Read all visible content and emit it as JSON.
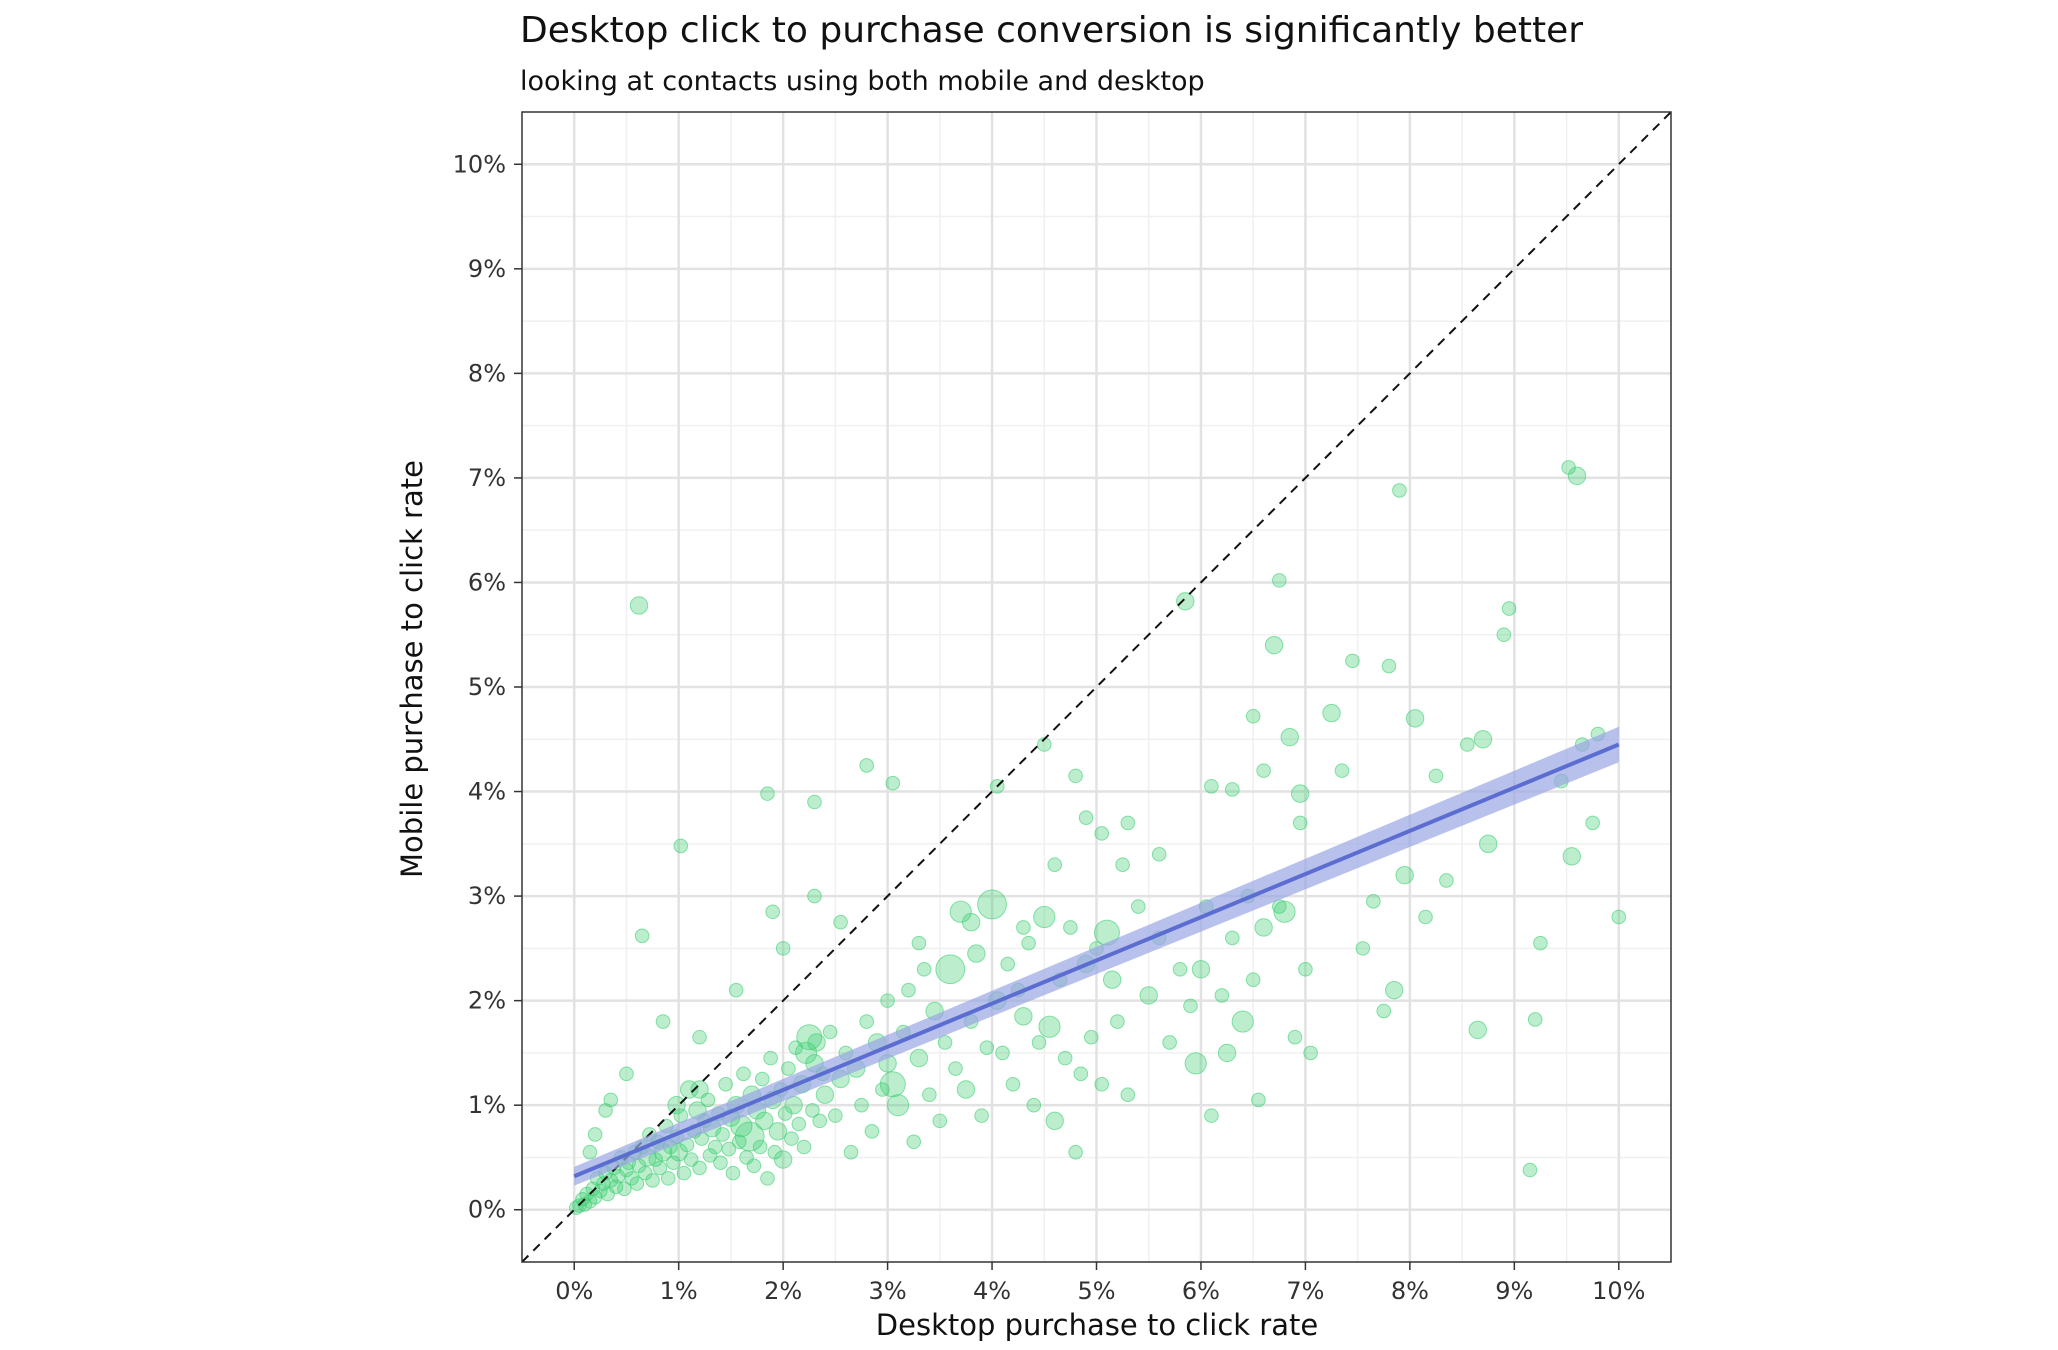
{
  "chart_data": {
    "type": "scatter",
    "title": "Desktop click to purchase conversion is significantly better",
    "subtitle": "looking at contacts using both mobile and desktop",
    "xlabel": "Desktop purchase to click rate",
    "ylabel": "Mobile purchase to click rate",
    "xlim": [
      -0.5,
      10.5
    ],
    "ylim": [
      -0.5,
      10.5
    ],
    "x_ticks": [
      0,
      1,
      2,
      3,
      4,
      5,
      6,
      7,
      8,
      9,
      10
    ],
    "y_ticks": [
      0,
      1,
      2,
      3,
      4,
      5,
      6,
      7,
      8,
      9,
      10
    ],
    "x_tick_labels": [
      "0%",
      "1%",
      "2%",
      "3%",
      "4%",
      "5%",
      "6%",
      "7%",
      "8%",
      "9%",
      "10%"
    ],
    "y_tick_labels": [
      "0%",
      "1%",
      "2%",
      "3%",
      "4%",
      "5%",
      "6%",
      "7%",
      "8%",
      "9%",
      "10%"
    ],
    "grid": true,
    "reference_line": {
      "type": "y=x",
      "style": "dashed",
      "color": "#111111"
    },
    "fit_line": {
      "type": "linear",
      "x": [
        0,
        10
      ],
      "y": [
        0.32,
        4.45
      ],
      "ci_halfwidth": [
        0.09,
        0.17
      ],
      "color": "#5b6dd1",
      "ribbon_color": "#9aa5e4"
    },
    "point_color": "#3ecf72",
    "points": [
      {
        "x": 0.02,
        "y": 0.02,
        "s": 2
      },
      {
        "x": 0.05,
        "y": 0.04,
        "s": 2
      },
      {
        "x": 0.08,
        "y": 0.1,
        "s": 2
      },
      {
        "x": 0.1,
        "y": 0.05,
        "s": 2
      },
      {
        "x": 0.12,
        "y": 0.15,
        "s": 2
      },
      {
        "x": 0.15,
        "y": 0.08,
        "s": 2
      },
      {
        "x": 0.18,
        "y": 0.2,
        "s": 2
      },
      {
        "x": 0.2,
        "y": 0.12,
        "s": 2
      },
      {
        "x": 0.22,
        "y": 0.3,
        "s": 2
      },
      {
        "x": 0.25,
        "y": 0.18,
        "s": 2
      },
      {
        "x": 0.28,
        "y": 0.25,
        "s": 2
      },
      {
        "x": 0.3,
        "y": 0.35,
        "s": 2
      },
      {
        "x": 0.32,
        "y": 0.15,
        "s": 2
      },
      {
        "x": 0.35,
        "y": 0.28,
        "s": 2
      },
      {
        "x": 0.38,
        "y": 0.4,
        "s": 2
      },
      {
        "x": 0.4,
        "y": 0.22,
        "s": 2
      },
      {
        "x": 0.42,
        "y": 0.32,
        "s": 2
      },
      {
        "x": 0.45,
        "y": 0.5,
        "s": 2
      },
      {
        "x": 0.48,
        "y": 0.2,
        "s": 2
      },
      {
        "x": 0.5,
        "y": 0.38,
        "s": 2
      },
      {
        "x": 0.52,
        "y": 0.45,
        "s": 2
      },
      {
        "x": 0.55,
        "y": 0.3,
        "s": 2
      },
      {
        "x": 0.58,
        "y": 0.55,
        "s": 2
      },
      {
        "x": 0.6,
        "y": 0.25,
        "s": 2
      },
      {
        "x": 0.62,
        "y": 0.42,
        "s": 2
      },
      {
        "x": 0.65,
        "y": 0.6,
        "s": 2
      },
      {
        "x": 0.68,
        "y": 0.35,
        "s": 2
      },
      {
        "x": 0.7,
        "y": 0.5,
        "s": 3
      },
      {
        "x": 0.72,
        "y": 0.72,
        "s": 2
      },
      {
        "x": 0.75,
        "y": 0.28,
        "s": 2
      },
      {
        "x": 0.78,
        "y": 0.48,
        "s": 2
      },
      {
        "x": 0.8,
        "y": 0.65,
        "s": 2
      },
      {
        "x": 0.82,
        "y": 0.4,
        "s": 2
      },
      {
        "x": 0.85,
        "y": 0.55,
        "s": 3
      },
      {
        "x": 0.88,
        "y": 0.8,
        "s": 2
      },
      {
        "x": 0.9,
        "y": 0.3,
        "s": 2
      },
      {
        "x": 0.92,
        "y": 0.6,
        "s": 2
      },
      {
        "x": 0.95,
        "y": 0.45,
        "s": 2
      },
      {
        "x": 0.98,
        "y": 0.7,
        "s": 2
      },
      {
        "x": 1.0,
        "y": 0.55,
        "s": 3
      },
      {
        "x": 1.02,
        "y": 0.9,
        "s": 2
      },
      {
        "x": 1.05,
        "y": 0.35,
        "s": 2
      },
      {
        "x": 1.08,
        "y": 0.62,
        "s": 2
      },
      {
        "x": 1.1,
        "y": 1.15,
        "s": 3
      },
      {
        "x": 1.12,
        "y": 0.48,
        "s": 2
      },
      {
        "x": 1.15,
        "y": 0.75,
        "s": 2
      },
      {
        "x": 1.18,
        "y": 0.95,
        "s": 3
      },
      {
        "x": 1.2,
        "y": 0.4,
        "s": 2
      },
      {
        "x": 1.22,
        "y": 0.68,
        "s": 2
      },
      {
        "x": 1.25,
        "y": 0.85,
        "s": 2
      },
      {
        "x": 1.28,
        "y": 1.05,
        "s": 2
      },
      {
        "x": 1.3,
        "y": 0.52,
        "s": 2
      },
      {
        "x": 1.32,
        "y": 0.78,
        "s": 3
      },
      {
        "x": 1.35,
        "y": 0.6,
        "s": 2
      },
      {
        "x": 1.38,
        "y": 0.92,
        "s": 2
      },
      {
        "x": 1.4,
        "y": 0.45,
        "s": 2
      },
      {
        "x": 1.42,
        "y": 0.72,
        "s": 2
      },
      {
        "x": 1.45,
        "y": 1.2,
        "s": 2
      },
      {
        "x": 1.48,
        "y": 0.58,
        "s": 2
      },
      {
        "x": 1.5,
        "y": 0.88,
        "s": 3
      },
      {
        "x": 1.52,
        "y": 0.35,
        "s": 2
      },
      {
        "x": 1.55,
        "y": 1.0,
        "s": 3
      },
      {
        "x": 1.58,
        "y": 0.65,
        "s": 2
      },
      {
        "x": 1.6,
        "y": 0.8,
        "s": 4
      },
      {
        "x": 1.62,
        "y": 1.3,
        "s": 2
      },
      {
        "x": 1.65,
        "y": 0.5,
        "s": 2
      },
      {
        "x": 1.68,
        "y": 0.7,
        "s": 6
      },
      {
        "x": 1.7,
        "y": 1.1,
        "s": 3
      },
      {
        "x": 1.72,
        "y": 0.42,
        "s": 2
      },
      {
        "x": 1.75,
        "y": 0.95,
        "s": 3
      },
      {
        "x": 1.78,
        "y": 0.6,
        "s": 2
      },
      {
        "x": 1.8,
        "y": 1.25,
        "s": 2
      },
      {
        "x": 1.82,
        "y": 0.85,
        "s": 3
      },
      {
        "x": 1.85,
        "y": 0.3,
        "s": 2
      },
      {
        "x": 1.88,
        "y": 1.45,
        "s": 2
      },
      {
        "x": 1.9,
        "y": 1.05,
        "s": 3
      },
      {
        "x": 1.92,
        "y": 0.55,
        "s": 2
      },
      {
        "x": 1.95,
        "y": 0.75,
        "s": 3
      },
      {
        "x": 1.98,
        "y": 1.15,
        "s": 2
      },
      {
        "x": 2.0,
        "y": 0.48,
        "s": 3
      },
      {
        "x": 2.02,
        "y": 0.92,
        "s": 2
      },
      {
        "x": 2.05,
        "y": 1.35,
        "s": 2
      },
      {
        "x": 2.08,
        "y": 0.68,
        "s": 2
      },
      {
        "x": 2.1,
        "y": 1.0,
        "s": 3
      },
      {
        "x": 2.12,
        "y": 1.55,
        "s": 2
      },
      {
        "x": 2.15,
        "y": 0.82,
        "s": 2
      },
      {
        "x": 2.18,
        "y": 1.2,
        "s": 3
      },
      {
        "x": 2.2,
        "y": 0.6,
        "s": 2
      },
      {
        "x": 2.22,
        "y": 1.5,
        "s": 4
      },
      {
        "x": 2.25,
        "y": 1.65,
        "s": 5
      },
      {
        "x": 2.28,
        "y": 0.95,
        "s": 2
      },
      {
        "x": 2.3,
        "y": 1.4,
        "s": 3
      },
      {
        "x": 2.32,
        "y": 1.6,
        "s": 3
      },
      {
        "x": 2.35,
        "y": 0.85,
        "s": 2
      },
      {
        "x": 2.38,
        "y": 1.3,
        "s": 2
      },
      {
        "x": 2.4,
        "y": 1.1,
        "s": 3
      },
      {
        "x": 2.45,
        "y": 1.7,
        "s": 2
      },
      {
        "x": 2.5,
        "y": 0.9,
        "s": 2
      },
      {
        "x": 2.55,
        "y": 1.25,
        "s": 3
      },
      {
        "x": 2.6,
        "y": 1.5,
        "s": 2
      },
      {
        "x": 2.65,
        "y": 0.55,
        "s": 2
      },
      {
        "x": 2.7,
        "y": 1.35,
        "s": 3
      },
      {
        "x": 2.75,
        "y": 1.0,
        "s": 2
      },
      {
        "x": 2.8,
        "y": 1.8,
        "s": 2
      },
      {
        "x": 2.85,
        "y": 0.75,
        "s": 2
      },
      {
        "x": 2.9,
        "y": 1.6,
        "s": 3
      },
      {
        "x": 2.95,
        "y": 1.15,
        "s": 2
      },
      {
        "x": 3.0,
        "y": 1.4,
        "s": 3
      },
      {
        "x": 3.05,
        "y": 1.2,
        "s": 5
      },
      {
        "x": 3.1,
        "y": 1.0,
        "s": 4
      },
      {
        "x": 3.15,
        "y": 1.7,
        "s": 2
      },
      {
        "x": 3.2,
        "y": 2.1,
        "s": 2
      },
      {
        "x": 3.25,
        "y": 0.65,
        "s": 2
      },
      {
        "x": 3.3,
        "y": 1.45,
        "s": 3
      },
      {
        "x": 3.35,
        "y": 2.3,
        "s": 2
      },
      {
        "x": 3.4,
        "y": 1.1,
        "s": 2
      },
      {
        "x": 3.45,
        "y": 1.9,
        "s": 3
      },
      {
        "x": 3.5,
        "y": 0.85,
        "s": 2
      },
      {
        "x": 3.55,
        "y": 1.6,
        "s": 2
      },
      {
        "x": 3.6,
        "y": 2.3,
        "s": 6
      },
      {
        "x": 3.65,
        "y": 1.35,
        "s": 2
      },
      {
        "x": 3.7,
        "y": 2.85,
        "s": 4
      },
      {
        "x": 3.75,
        "y": 1.15,
        "s": 3
      },
      {
        "x": 3.8,
        "y": 1.8,
        "s": 2
      },
      {
        "x": 3.85,
        "y": 2.45,
        "s": 3
      },
      {
        "x": 3.9,
        "y": 0.9,
        "s": 2
      },
      {
        "x": 3.95,
        "y": 1.55,
        "s": 2
      },
      {
        "x": 4.0,
        "y": 2.92,
        "s": 6
      },
      {
        "x": 4.05,
        "y": 2.0,
        "s": 3
      },
      {
        "x": 4.1,
        "y": 1.5,
        "s": 2
      },
      {
        "x": 4.15,
        "y": 2.35,
        "s": 2
      },
      {
        "x": 4.2,
        "y": 1.2,
        "s": 2
      },
      {
        "x": 4.25,
        "y": 2.1,
        "s": 2
      },
      {
        "x": 4.3,
        "y": 1.85,
        "s": 3
      },
      {
        "x": 4.35,
        "y": 2.55,
        "s": 2
      },
      {
        "x": 4.4,
        "y": 1.0,
        "s": 2
      },
      {
        "x": 4.45,
        "y": 1.6,
        "s": 2
      },
      {
        "x": 4.5,
        "y": 2.8,
        "s": 4
      },
      {
        "x": 4.55,
        "y": 1.75,
        "s": 4
      },
      {
        "x": 4.6,
        "y": 0.85,
        "s": 3
      },
      {
        "x": 4.65,
        "y": 2.2,
        "s": 2
      },
      {
        "x": 4.7,
        "y": 1.45,
        "s": 2
      },
      {
        "x": 4.75,
        "y": 2.7,
        "s": 2
      },
      {
        "x": 4.8,
        "y": 0.55,
        "s": 2
      },
      {
        "x": 4.85,
        "y": 1.3,
        "s": 2
      },
      {
        "x": 4.9,
        "y": 2.35,
        "s": 3
      },
      {
        "x": 4.95,
        "y": 1.65,
        "s": 2
      },
      {
        "x": 5.0,
        "y": 2.5,
        "s": 2
      },
      {
        "x": 5.05,
        "y": 1.2,
        "s": 2
      },
      {
        "x": 5.1,
        "y": 2.65,
        "s": 5
      },
      {
        "x": 5.15,
        "y": 2.2,
        "s": 3
      },
      {
        "x": 5.2,
        "y": 1.8,
        "s": 2
      },
      {
        "x": 5.25,
        "y": 3.3,
        "s": 2
      },
      {
        "x": 5.3,
        "y": 1.1,
        "s": 2
      },
      {
        "x": 5.4,
        "y": 2.9,
        "s": 2
      },
      {
        "x": 5.5,
        "y": 2.05,
        "s": 3
      },
      {
        "x": 5.6,
        "y": 2.6,
        "s": 2
      },
      {
        "x": 5.7,
        "y": 1.6,
        "s": 2
      },
      {
        "x": 5.8,
        "y": 2.3,
        "s": 2
      },
      {
        "x": 5.9,
        "y": 1.95,
        "s": 2
      },
      {
        "x": 5.95,
        "y": 1.4,
        "s": 4
      },
      {
        "x": 6.0,
        "y": 2.3,
        "s": 3
      },
      {
        "x": 6.05,
        "y": 2.9,
        "s": 2
      },
      {
        "x": 6.1,
        "y": 0.9,
        "s": 2
      },
      {
        "x": 6.2,
        "y": 2.05,
        "s": 2
      },
      {
        "x": 6.25,
        "y": 1.5,
        "s": 3
      },
      {
        "x": 6.3,
        "y": 2.6,
        "s": 2
      },
      {
        "x": 6.4,
        "y": 1.8,
        "s": 4
      },
      {
        "x": 6.45,
        "y": 3.0,
        "s": 2
      },
      {
        "x": 6.5,
        "y": 2.2,
        "s": 2
      },
      {
        "x": 6.55,
        "y": 1.05,
        "s": 2
      },
      {
        "x": 6.6,
        "y": 2.7,
        "s": 3
      },
      {
        "x": 6.7,
        "y": 5.4,
        "s": 3
      },
      {
        "x": 6.75,
        "y": 2.9,
        "s": 2
      },
      {
        "x": 6.8,
        "y": 2.85,
        "s": 4
      },
      {
        "x": 6.9,
        "y": 1.65,
        "s": 2
      },
      {
        "x": 7.0,
        "y": 2.3,
        "s": 2
      },
      {
        "x": 7.05,
        "y": 1.5,
        "s": 2
      },
      {
        "x": 6.85,
        "y": 4.52,
        "s": 3
      },
      {
        "x": 6.95,
        "y": 3.98,
        "s": 3
      },
      {
        "x": 7.25,
        "y": 4.75,
        "s": 3
      },
      {
        "x": 7.35,
        "y": 4.2,
        "s": 2
      },
      {
        "x": 7.45,
        "y": 5.25,
        "s": 2
      },
      {
        "x": 7.55,
        "y": 2.5,
        "s": 2
      },
      {
        "x": 7.65,
        "y": 2.95,
        "s": 2
      },
      {
        "x": 7.75,
        "y": 1.9,
        "s": 2
      },
      {
        "x": 7.8,
        "y": 5.2,
        "s": 2
      },
      {
        "x": 7.85,
        "y": 2.1,
        "s": 3
      },
      {
        "x": 7.95,
        "y": 3.2,
        "s": 3
      },
      {
        "x": 8.05,
        "y": 4.7,
        "s": 3
      },
      {
        "x": 8.15,
        "y": 2.8,
        "s": 2
      },
      {
        "x": 8.25,
        "y": 4.15,
        "s": 2
      },
      {
        "x": 8.35,
        "y": 3.15,
        "s": 2
      },
      {
        "x": 8.55,
        "y": 4.45,
        "s": 2
      },
      {
        "x": 8.65,
        "y": 1.72,
        "s": 3
      },
      {
        "x": 8.7,
        "y": 4.5,
        "s": 3
      },
      {
        "x": 8.75,
        "y": 3.5,
        "s": 3
      },
      {
        "x": 8.9,
        "y": 5.5,
        "s": 2
      },
      {
        "x": 8.95,
        "y": 5.75,
        "s": 2
      },
      {
        "x": 9.15,
        "y": 0.38,
        "s": 2
      },
      {
        "x": 9.2,
        "y": 1.82,
        "s": 2
      },
      {
        "x": 9.25,
        "y": 2.55,
        "s": 2
      },
      {
        "x": 9.45,
        "y": 4.1,
        "s": 2
      },
      {
        "x": 9.55,
        "y": 3.38,
        "s": 3
      },
      {
        "x": 9.6,
        "y": 7.02,
        "s": 3
      },
      {
        "x": 9.65,
        "y": 4.45,
        "s": 2
      },
      {
        "x": 9.75,
        "y": 3.7,
        "s": 2
      },
      {
        "x": 9.8,
        "y": 4.55,
        "s": 2
      },
      {
        "x": 10.0,
        "y": 2.8,
        "s": 2
      },
      {
        "x": 9.52,
        "y": 7.1,
        "s": 2
      },
      {
        "x": 0.62,
        "y": 5.78,
        "s": 3
      },
      {
        "x": 1.02,
        "y": 3.48,
        "s": 2
      },
      {
        "x": 0.65,
        "y": 2.62,
        "s": 2
      },
      {
        "x": 0.85,
        "y": 1.8,
        "s": 2
      },
      {
        "x": 1.85,
        "y": 3.98,
        "s": 2
      },
      {
        "x": 2.3,
        "y": 3.9,
        "s": 2
      },
      {
        "x": 2.8,
        "y": 4.25,
        "s": 2
      },
      {
        "x": 3.05,
        "y": 4.08,
        "s": 2
      },
      {
        "x": 4.05,
        "y": 4.05,
        "s": 2
      },
      {
        "x": 4.5,
        "y": 4.45,
        "s": 2
      },
      {
        "x": 4.8,
        "y": 4.15,
        "s": 2
      },
      {
        "x": 5.85,
        "y": 5.82,
        "s": 3
      },
      {
        "x": 6.1,
        "y": 4.05,
        "s": 2
      },
      {
        "x": 6.3,
        "y": 4.02,
        "s": 2
      },
      {
        "x": 6.5,
        "y": 4.72,
        "s": 2
      },
      {
        "x": 6.75,
        "y": 6.02,
        "s": 2
      },
      {
        "x": 7.9,
        "y": 6.88,
        "s": 2
      },
      {
        "x": 5.3,
        "y": 3.7,
        "s": 2
      },
      {
        "x": 5.6,
        "y": 3.4,
        "s": 2
      },
      {
        "x": 4.9,
        "y": 3.75,
        "s": 2
      },
      {
        "x": 6.6,
        "y": 4.2,
        "s": 2
      },
      {
        "x": 6.95,
        "y": 3.7,
        "s": 2
      },
      {
        "x": 2.55,
        "y": 2.75,
        "s": 2
      },
      {
        "x": 2.3,
        "y": 3.0,
        "s": 2
      },
      {
        "x": 2.0,
        "y": 2.5,
        "s": 2
      },
      {
        "x": 1.9,
        "y": 2.85,
        "s": 2
      },
      {
        "x": 1.55,
        "y": 2.1,
        "s": 2
      },
      {
        "x": 1.2,
        "y": 1.65,
        "s": 2
      },
      {
        "x": 0.5,
        "y": 1.3,
        "s": 2
      },
      {
        "x": 0.3,
        "y": 0.95,
        "s": 2
      },
      {
        "x": 0.2,
        "y": 0.72,
        "s": 2
      },
      {
        "x": 0.35,
        "y": 1.05,
        "s": 2
      },
      {
        "x": 0.15,
        "y": 0.55,
        "s": 2
      },
      {
        "x": 1.2,
        "y": 1.15,
        "s": 3
      },
      {
        "x": 0.98,
        "y": 1.0,
        "s": 3
      },
      {
        "x": 3.0,
        "y": 2.0,
        "s": 2
      },
      {
        "x": 3.3,
        "y": 2.55,
        "s": 2
      },
      {
        "x": 3.8,
        "y": 2.75,
        "s": 3
      },
      {
        "x": 4.3,
        "y": 2.7,
        "s": 2
      },
      {
        "x": 4.6,
        "y": 3.3,
        "s": 2
      },
      {
        "x": 5.05,
        "y": 3.6,
        "s": 2
      }
    ]
  }
}
